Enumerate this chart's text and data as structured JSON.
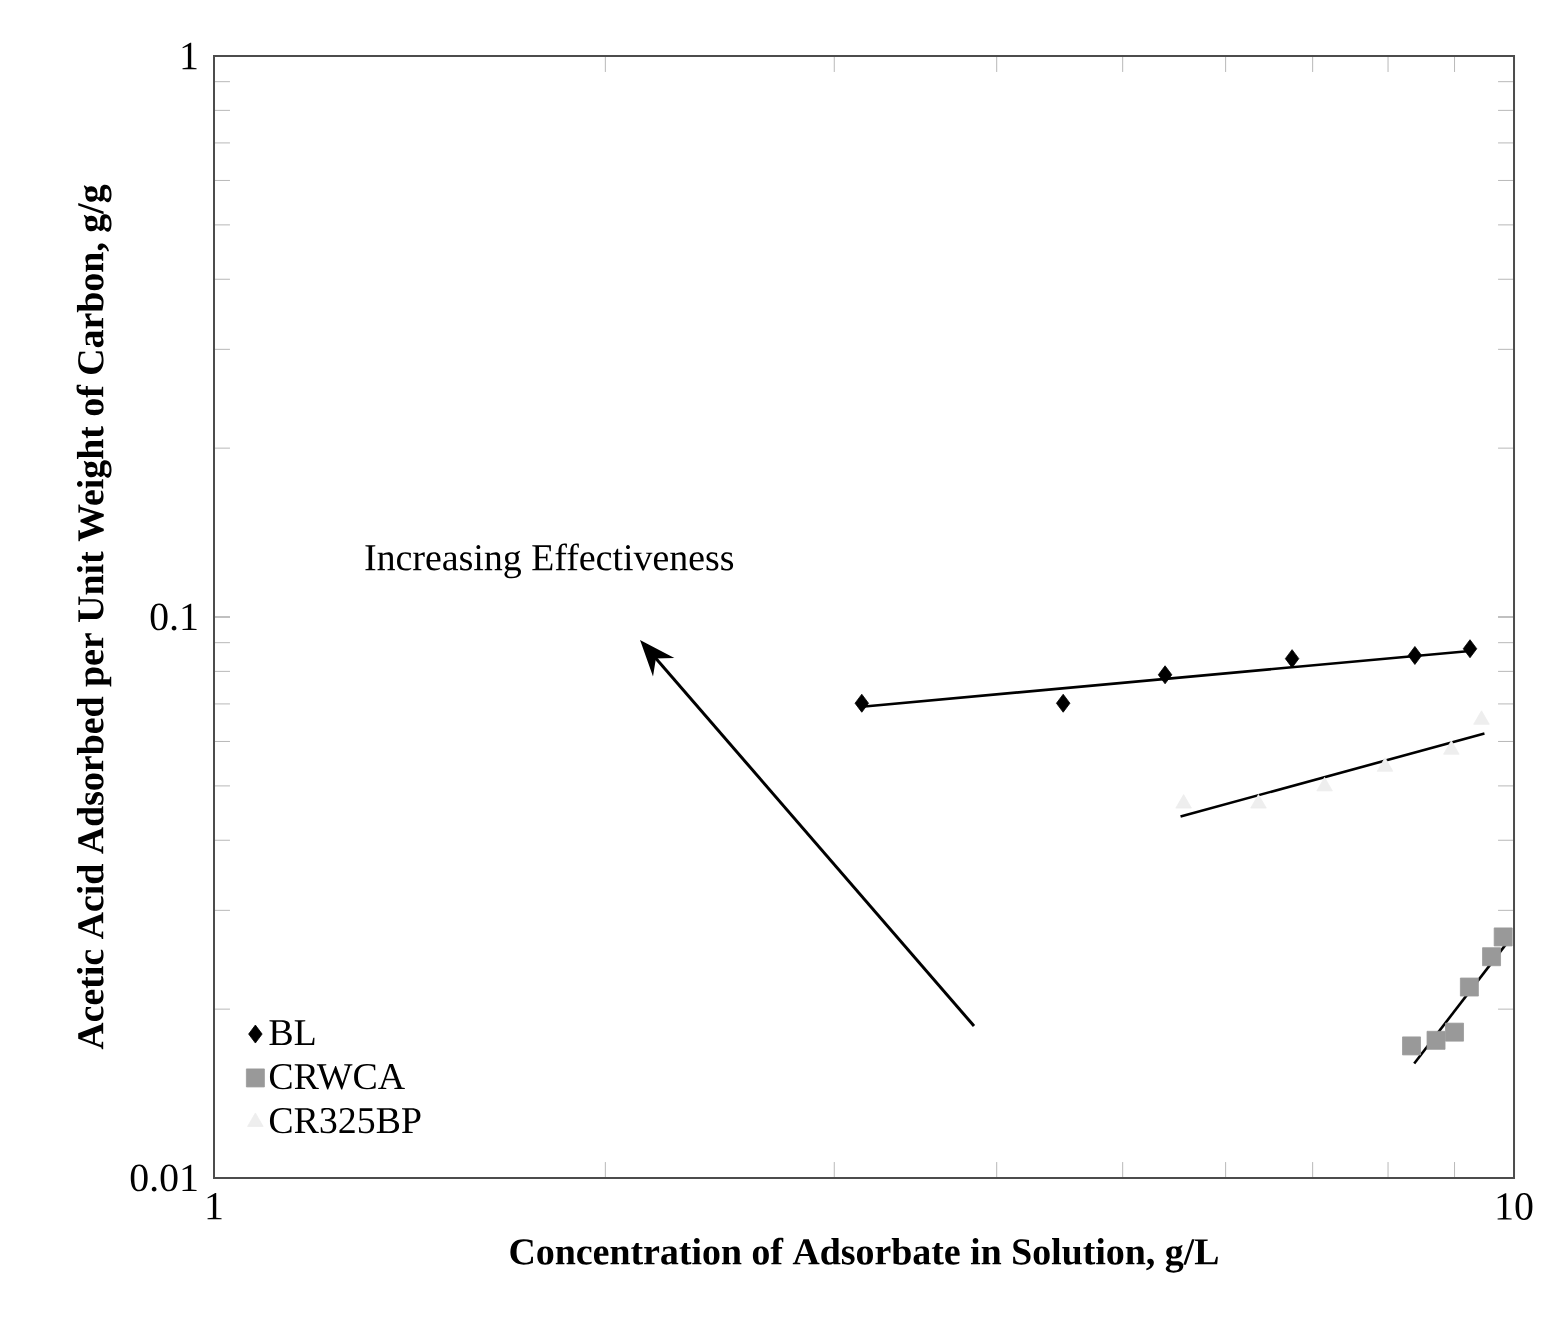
{
  "chart_data": {
    "type": "scatter",
    "xlabel": "Concentration of Adsorbate in Solution, g/L",
    "ylabel": "Acetic Acid Adsorbed per Unit Weight of Carbon, g/g",
    "log": "xy",
    "xlim": [
      1,
      10
    ],
    "ylim": [
      0.01,
      1
    ],
    "xticks": [
      1,
      10
    ],
    "yticks": [
      0.01,
      0.1,
      1
    ],
    "legend": "bottom left",
    "annotations": [
      "Increasing Effectiveness"
    ],
    "series": [
      {
        "name": "BL",
        "marker": "diamond",
        "color": "#000000",
        "x": [
          3.15,
          4.5,
          5.39,
          6.75,
          8.39,
          9.25
        ],
        "values": [
          0.0702,
          0.0702,
          0.0789,
          0.0843,
          0.0854,
          0.0878
        ]
      },
      {
        "name": "CRWCA",
        "marker": "square",
        "color": "#999999",
        "x": [
          8.34,
          8.71,
          9.0,
          9.24,
          9.61,
          9.81
        ],
        "values": [
          0.0172,
          0.0176,
          0.0182,
          0.0219,
          0.0248,
          0.0269
        ]
      },
      {
        "name": "CR325BP",
        "marker": "triangle",
        "color": "#eeeeee",
        "x": [
          5.57,
          6.36,
          7.15,
          7.96,
          8.95,
          9.44
        ],
        "values": [
          0.0465,
          0.0465,
          0.0499,
          0.0541,
          0.058,
          0.0656
        ]
      },
      {
        "type": "line",
        "color": "#000000",
        "x": [
          3.15,
          9.25
        ],
        "values": [
          0.0692,
          0.087
        ]
      },
      {
        "type": "line",
        "color": "#000000",
        "x": [
          5.54,
          9.49
        ],
        "values": [
          0.0441,
          0.062
        ]
      },
      {
        "type": "line",
        "color": "#000000",
        "x": [
          8.38,
          9.87
        ],
        "values": [
          0.016,
          0.0262
        ]
      }
    ]
  }
}
